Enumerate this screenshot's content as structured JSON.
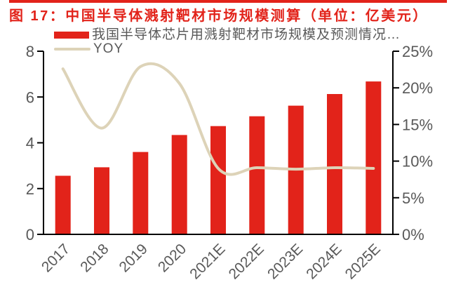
{
  "chart_data": {
    "type": "bar",
    "title": "图 17：中国半导体溅射靶材市场规模测算（单位：亿美元）",
    "categories": [
      "2017",
      "2018",
      "2019",
      "2020",
      "2021E",
      "2022E",
      "2023E",
      "2024E",
      "2025E"
    ],
    "series": [
      {
        "name": "我国半导体芯片用溅射靶材市场规模及预测情况…",
        "type": "bar",
        "axis": "left",
        "values": [
          2.56,
          2.93,
          3.6,
          4.34,
          4.73,
          5.16,
          5.62,
          6.13,
          6.68
        ]
      },
      {
        "name": "YOY",
        "type": "smooth-line",
        "axis": "right",
        "values": [
          22.6,
          14.5,
          22.9,
          20.6,
          9.0,
          9.1,
          8.9,
          9.1,
          9.0
        ]
      }
    ],
    "left_axis": {
      "ticks": [
        "0",
        "2",
        "4",
        "6",
        "8"
      ],
      "range": [
        0,
        8
      ]
    },
    "right_axis": {
      "ticks": [
        "0%",
        "5%",
        "10%",
        "15%",
        "20%",
        "25%"
      ],
      "range": [
        0,
        25
      ]
    },
    "legend_position": "top",
    "grid": false,
    "colors": {
      "bar": "#e2231a",
      "line": "#ddd3b8",
      "title": "#e2231a",
      "axis": "#000000",
      "label_text": "#595959"
    }
  }
}
